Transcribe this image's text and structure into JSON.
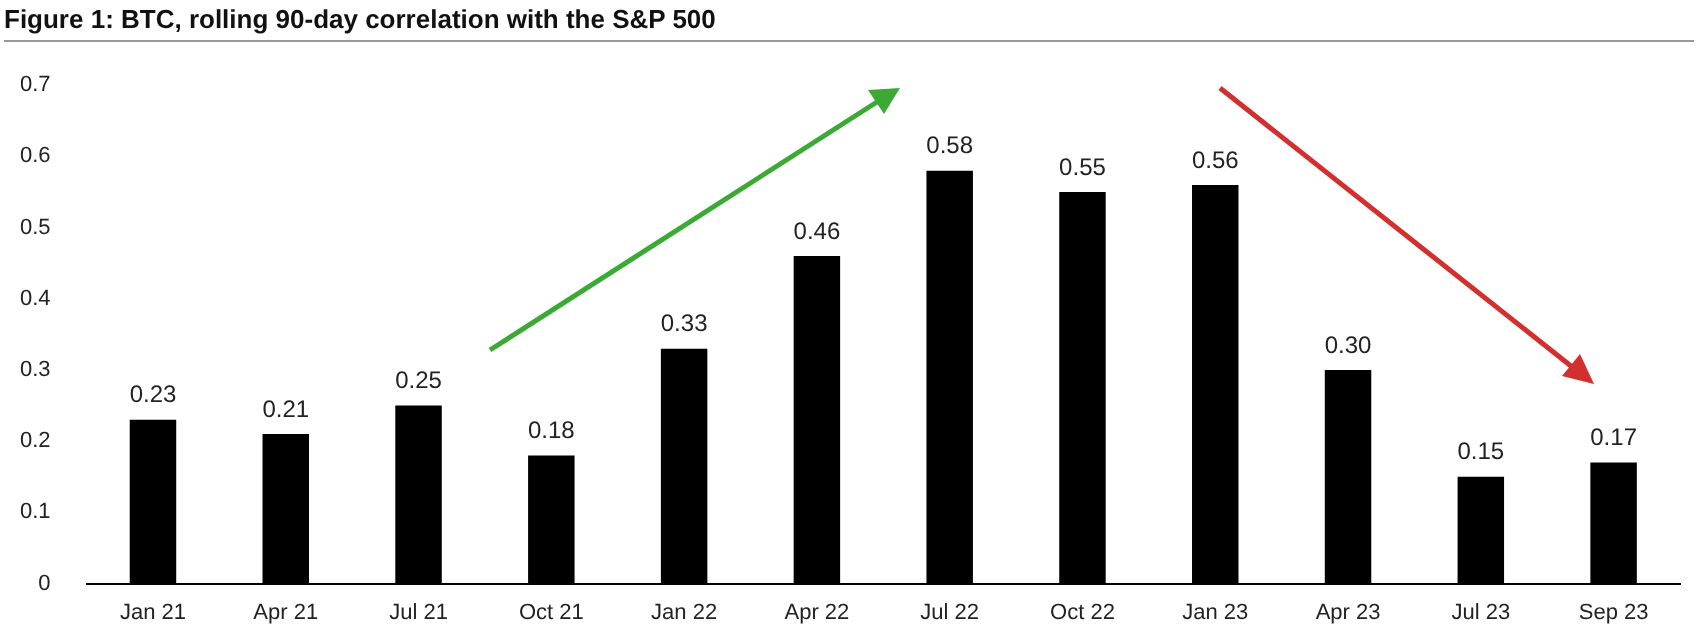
{
  "chart_data": {
    "type": "bar",
    "title": "Figure 1: BTC, rolling 90-day correlation with the S&P 500",
    "categories": [
      "Jan 21",
      "Apr 21",
      "Jul 21",
      "Oct 21",
      "Jan 22",
      "Apr 22",
      "Jul 22",
      "Oct 22",
      "Jan 23",
      "Apr 23",
      "Jul 23",
      "Sep 23"
    ],
    "values": [
      0.23,
      0.21,
      0.25,
      0.18,
      0.33,
      0.46,
      0.58,
      0.55,
      0.56,
      0.3,
      0.15,
      0.17
    ],
    "value_labels": [
      "0.23",
      "0.21",
      "0.25",
      "0.18",
      "0.33",
      "0.46",
      "0.58",
      "0.55",
      "0.56",
      "0.30",
      "0.15",
      "0.17"
    ],
    "color": "#000000",
    "ylim": [
      0,
      0.7
    ],
    "yticks": [
      0,
      0.1,
      0.2,
      0.3,
      0.4,
      0.5,
      0.6,
      0.7
    ],
    "grid": false,
    "legend": false
  }
}
